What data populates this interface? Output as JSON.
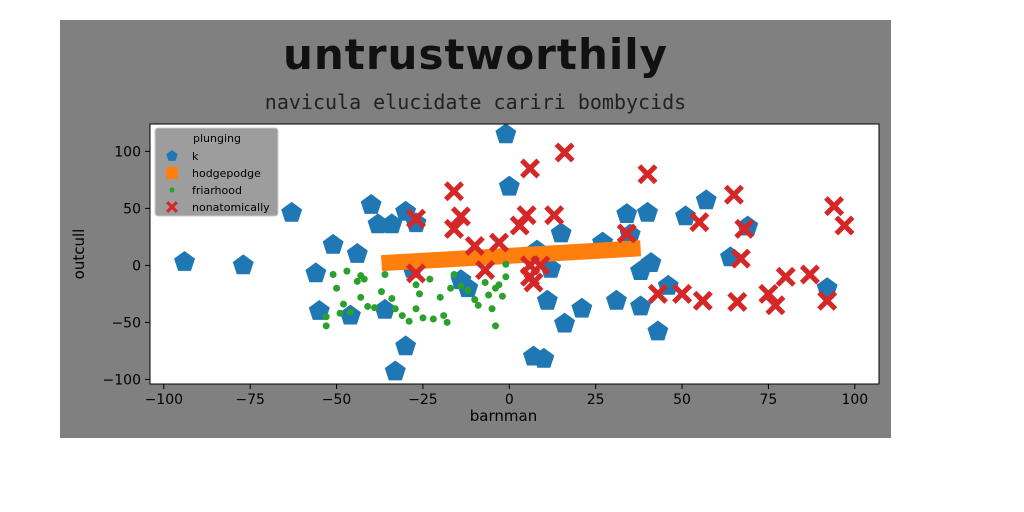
{
  "chart_data": {
    "type": "scatter",
    "title": "untrustworthily",
    "subtitle": "navicula elucidate cariri bombycids",
    "xlabel": "barnman",
    "ylabel": "outcull",
    "xlim": [
      -104,
      107
    ],
    "ylim": [
      -104,
      124
    ],
    "xticks": [
      -100,
      -75,
      -50,
      -25,
      0,
      25,
      50,
      75,
      100
    ],
    "yticks": [
      -100,
      -50,
      0,
      50,
      100
    ],
    "grid": false,
    "legend": {
      "title": "plunging",
      "placement": "top-left"
    },
    "series": [
      {
        "name": "k",
        "marker": "pentagon",
        "color": "#1f77b4",
        "points": [
          [
            -94,
            3
          ],
          [
            -77,
            0
          ],
          [
            -63,
            46
          ],
          [
            -56,
            -7
          ],
          [
            -55,
            -40
          ],
          [
            -51,
            18
          ],
          [
            -46,
            -44
          ],
          [
            -44,
            10
          ],
          [
            -40,
            53
          ],
          [
            -38,
            36
          ],
          [
            -36,
            -39
          ],
          [
            -34,
            36
          ],
          [
            -33,
            -93
          ],
          [
            -30,
            47
          ],
          [
            -30,
            -71
          ],
          [
            -28,
            -3
          ],
          [
            -27,
            37
          ],
          [
            -14,
            -13
          ],
          [
            -12,
            -20
          ],
          [
            -1,
            115
          ],
          [
            0,
            69
          ],
          [
            7,
            -80
          ],
          [
            10,
            -82
          ],
          [
            8,
            13
          ],
          [
            11,
            -31
          ],
          [
            12,
            -3
          ],
          [
            15,
            28
          ],
          [
            16,
            -51
          ],
          [
            21,
            -38
          ],
          [
            27,
            20
          ],
          [
            31,
            -31
          ],
          [
            34,
            45
          ],
          [
            35,
            27
          ],
          [
            38,
            -5
          ],
          [
            38,
            -36
          ],
          [
            40,
            46
          ],
          [
            41,
            2
          ],
          [
            43,
            -58
          ],
          [
            46,
            -18
          ],
          [
            51,
            43
          ],
          [
            57,
            57
          ],
          [
            64,
            7
          ],
          [
            69,
            34
          ],
          [
            92,
            -20
          ]
        ]
      },
      {
        "name": "hodgepodge",
        "marker": "line",
        "color": "#ff7f0e",
        "points": [
          [
            -37,
            2
          ],
          [
            38,
            15
          ]
        ]
      },
      {
        "name": "friarhood",
        "marker": "dot",
        "color": "#2ca02c",
        "points": [
          [
            -53,
            -53
          ],
          [
            -53,
            -45
          ],
          [
            -51,
            -8
          ],
          [
            -50,
            -20
          ],
          [
            -49,
            -42
          ],
          [
            -48,
            -34
          ],
          [
            -47,
            -5
          ],
          [
            -46,
            -41
          ],
          [
            -44,
            -14
          ],
          [
            -43,
            -9
          ],
          [
            -43,
            -28
          ],
          [
            -42,
            -12
          ],
          [
            -41,
            -36
          ],
          [
            -39,
            -37
          ],
          [
            -37,
            -23
          ],
          [
            -36,
            -8
          ],
          [
            -34,
            -29
          ],
          [
            -33,
            -38
          ],
          [
            -31,
            -44
          ],
          [
            -29,
            -49
          ],
          [
            -27,
            -17
          ],
          [
            -27,
            -38
          ],
          [
            -26,
            -25
          ],
          [
            -25,
            -46
          ],
          [
            -23,
            -12
          ],
          [
            -22,
            -47
          ],
          [
            -20,
            -28
          ],
          [
            -19,
            -44
          ],
          [
            -18,
            -50
          ],
          [
            -17,
            -20
          ],
          [
            -16,
            -8
          ],
          [
            -14,
            -18
          ],
          [
            -12,
            -22
          ],
          [
            -10,
            -30
          ],
          [
            -9,
            -35
          ],
          [
            -7,
            -15
          ],
          [
            -6,
            -26
          ],
          [
            -5,
            -38
          ],
          [
            -4,
            -20
          ],
          [
            -4,
            -53
          ],
          [
            -3,
            -17
          ],
          [
            -2,
            -27
          ],
          [
            -1,
            -10
          ],
          [
            -1,
            1
          ]
        ]
      },
      {
        "name": "nonatomically",
        "marker": "x",
        "color": "#d62728",
        "points": [
          [
            -27,
            41
          ],
          [
            -27,
            -7
          ],
          [
            -16,
            65
          ],
          [
            -16,
            32
          ],
          [
            -14,
            43
          ],
          [
            -10,
            17
          ],
          [
            -7,
            -4
          ],
          [
            -3,
            20
          ],
          [
            3,
            35
          ],
          [
            5,
            44
          ],
          [
            6,
            85
          ],
          [
            6,
            -10
          ],
          [
            6,
            0
          ],
          [
            7,
            -15
          ],
          [
            9,
            0
          ],
          [
            13,
            44
          ],
          [
            16,
            99
          ],
          [
            34,
            28
          ],
          [
            40,
            80
          ],
          [
            43,
            -25
          ],
          [
            50,
            -25
          ],
          [
            55,
            38
          ],
          [
            56,
            -31
          ],
          [
            65,
            62
          ],
          [
            66,
            -32
          ],
          [
            67,
            6
          ],
          [
            68,
            32
          ],
          [
            75,
            -25
          ],
          [
            77,
            -35
          ],
          [
            80,
            -10
          ],
          [
            87,
            -8
          ],
          [
            92,
            -31
          ],
          [
            94,
            52
          ],
          [
            97,
            35
          ]
        ]
      }
    ]
  }
}
